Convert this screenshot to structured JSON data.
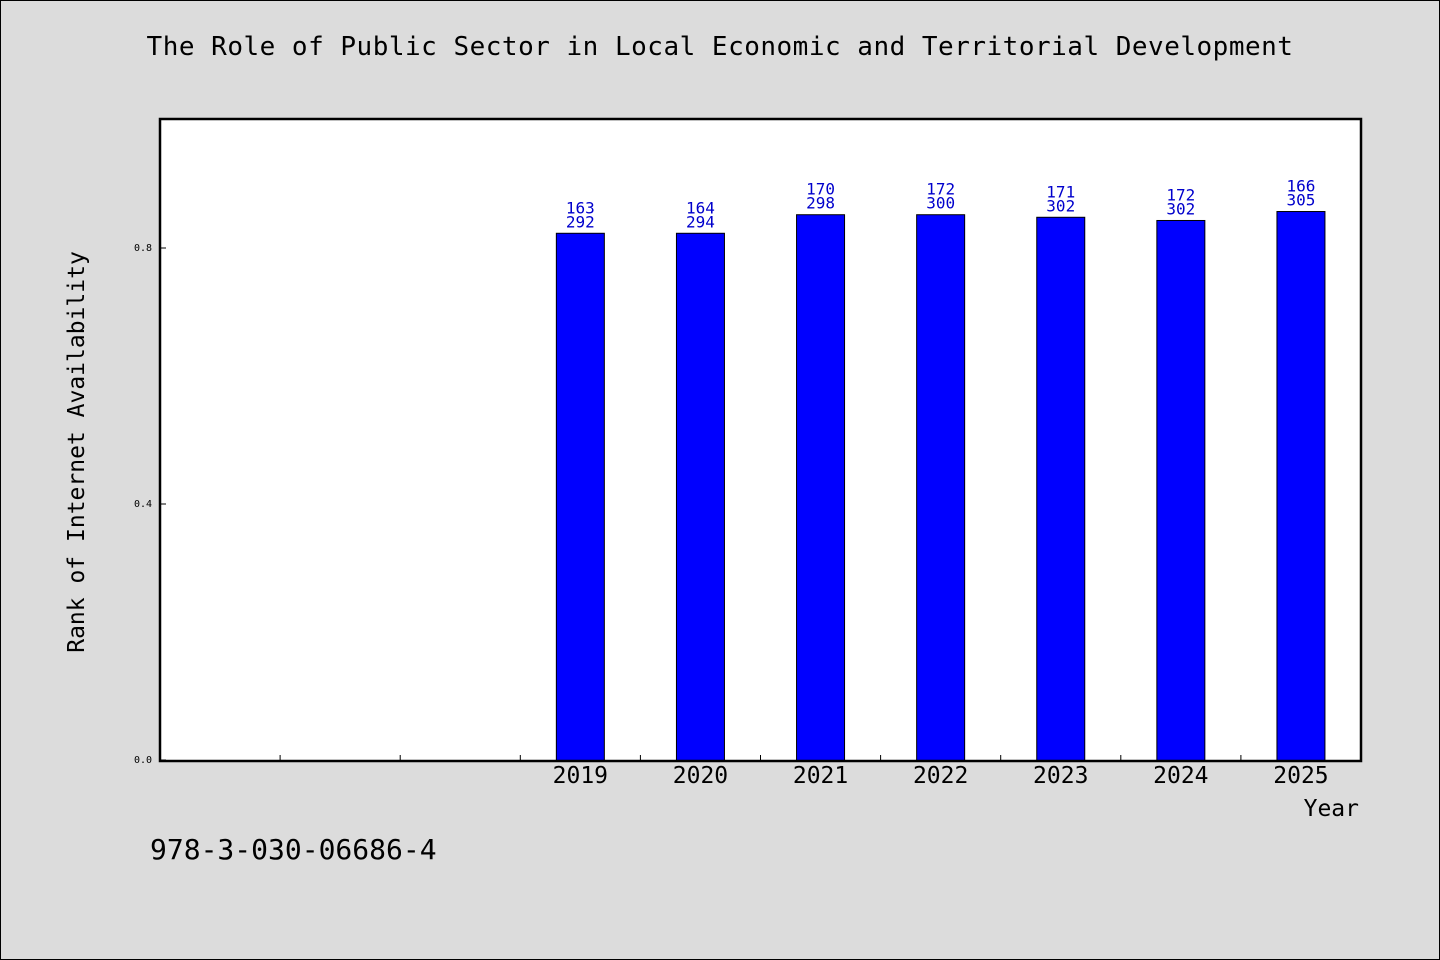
{
  "chart_data": {
    "type": "bar",
    "title": "The Role of Public Sector in Local Economic and Territorial Development",
    "xlabel": "Year",
    "ylabel": "Rank of Internet Availability",
    "categories": [
      "",
      "",
      "",
      "2019",
      "2020",
      "2021",
      "2022",
      "2023",
      "2024",
      "2025"
    ],
    "values": [
      null,
      null,
      null,
      0.823,
      0.823,
      0.852,
      0.852,
      0.848,
      0.843,
      0.857
    ],
    "bar_labels": [
      null,
      null,
      null,
      [
        "163",
        "292"
      ],
      [
        "164",
        "294"
      ],
      [
        "170",
        "298"
      ],
      [
        "172",
        "300"
      ],
      [
        "171",
        "302"
      ],
      [
        "172",
        "302"
      ],
      [
        "166",
        "305"
      ]
    ],
    "yticks": [
      "0.0",
      "0.4",
      "0.8"
    ],
    "ytick_values": [
      0.0,
      0.4,
      0.8
    ],
    "ylim": [
      0,
      1.0
    ],
    "grid": false,
    "legend": "none",
    "colors": {
      "bar_fill": "#0000ff",
      "bar_stroke": "#000000",
      "data_label": "#0000cc",
      "background": "#dcdcdc",
      "plot_background": "#ffffff"
    }
  },
  "footer": {
    "isbn": "978-3-030-06686-4"
  }
}
